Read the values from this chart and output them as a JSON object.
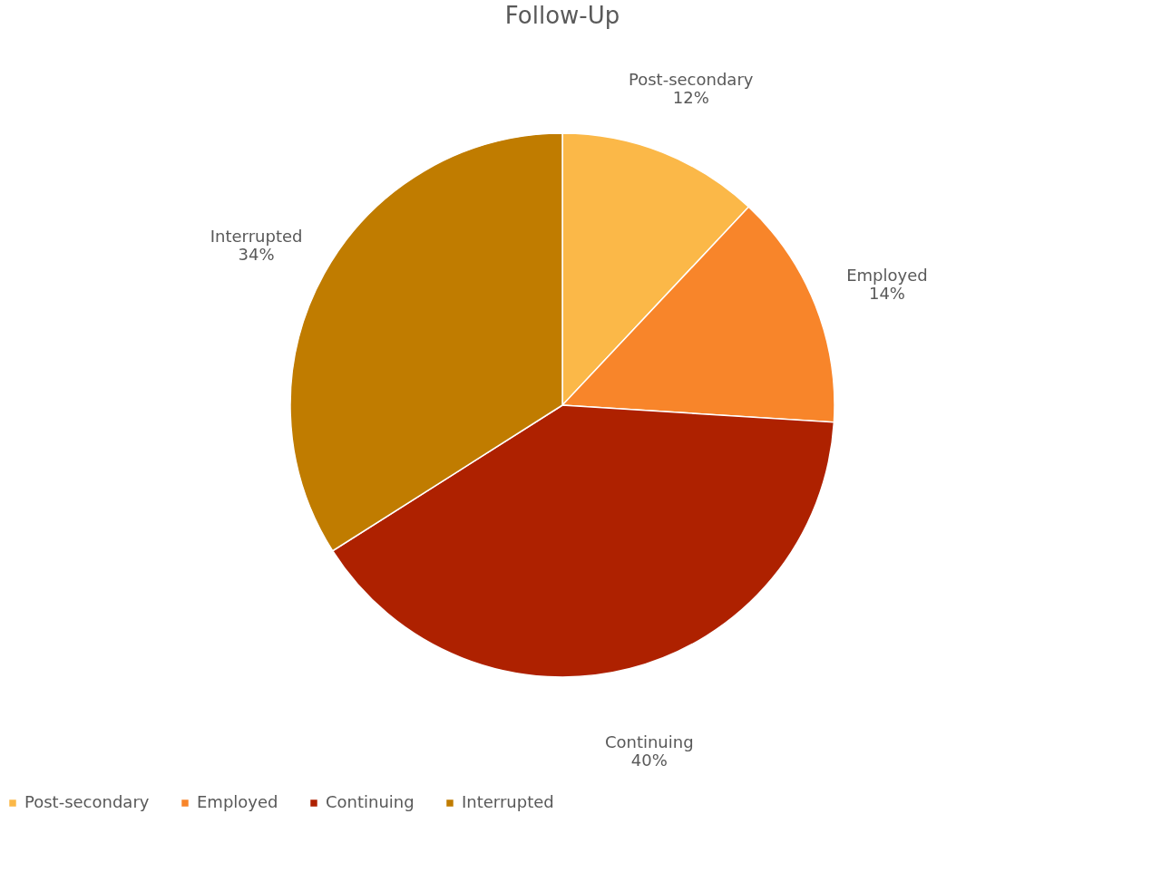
{
  "chart_data": {
    "type": "pie",
    "title": "Follow-Up",
    "categories": [
      "Post-secondary",
      "Employed",
      "Continuing",
      "Interrupted"
    ],
    "values": [
      12,
      14,
      40,
      34
    ],
    "colors": [
      "#fbb848",
      "#f8852a",
      "#ae2100",
      "#c07c00"
    ],
    "value_labels": [
      "12%",
      "14%",
      "40%",
      "34%"
    ],
    "legend": "bottom"
  }
}
